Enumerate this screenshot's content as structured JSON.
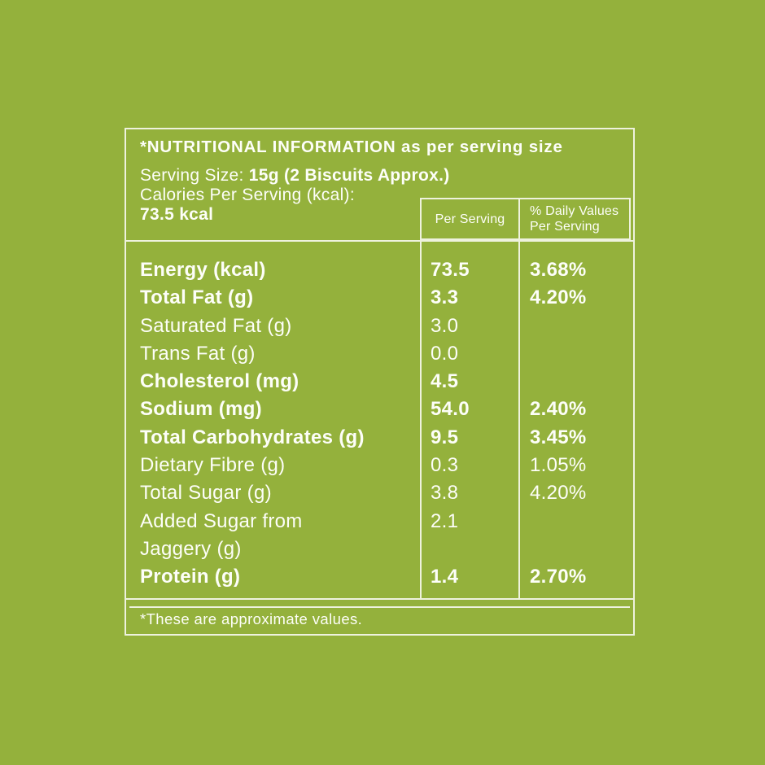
{
  "colors": {
    "background": "#94b13c",
    "line": "#eef2de",
    "text": "#fdfef8"
  },
  "table": {
    "title": "*NUTRITIONAL INFORMATION as per serving size",
    "serving_size_label": "Serving Size: ",
    "serving_size_value": "15g (2 Biscuits Approx.)",
    "calories_label": "Calories Per Serving (kcal):",
    "calories_value": "73.5 kcal",
    "columns": {
      "per_serving": "Per Serving",
      "daily_values_line1": "% Daily Values",
      "daily_values_line2": "Per Serving"
    },
    "rows": [
      {
        "label": "Energy (kcal)",
        "per_serving": "73.5",
        "daily": "3.68%",
        "bold": true
      },
      {
        "label": "Total Fat (g)",
        "per_serving": "3.3",
        "daily": "4.20%",
        "bold": true
      },
      {
        "label": "Saturated Fat (g)",
        "per_serving": "3.0",
        "daily": "",
        "bold": false
      },
      {
        "label": "Trans Fat (g)",
        "per_serving": "0.0",
        "daily": "",
        "bold": false
      },
      {
        "label": "Cholesterol (mg)",
        "per_serving": "4.5",
        "daily": "",
        "bold": true
      },
      {
        "label": "Sodium (mg)",
        "per_serving": "54.0",
        "daily": "2.40%",
        "bold": true
      },
      {
        "label": "Total Carbohydrates (g)",
        "per_serving": "9.5",
        "daily": "3.45%",
        "bold": true
      },
      {
        "label": "Dietary Fibre (g)",
        "per_serving": "0.3",
        "daily": "1.05%",
        "bold": false
      },
      {
        "label": "Total Sugar (g)",
        "per_serving": "3.8",
        "daily": "4.20%",
        "bold": false
      },
      {
        "label": "Added Sugar from",
        "label2": "Jaggery (g)",
        "per_serving": "2.1",
        "daily": "",
        "bold": false
      },
      {
        "label": "Protein (g)",
        "per_serving": "1.4",
        "daily": "2.70%",
        "bold": true
      }
    ],
    "footnote": "*These are approximate values."
  }
}
